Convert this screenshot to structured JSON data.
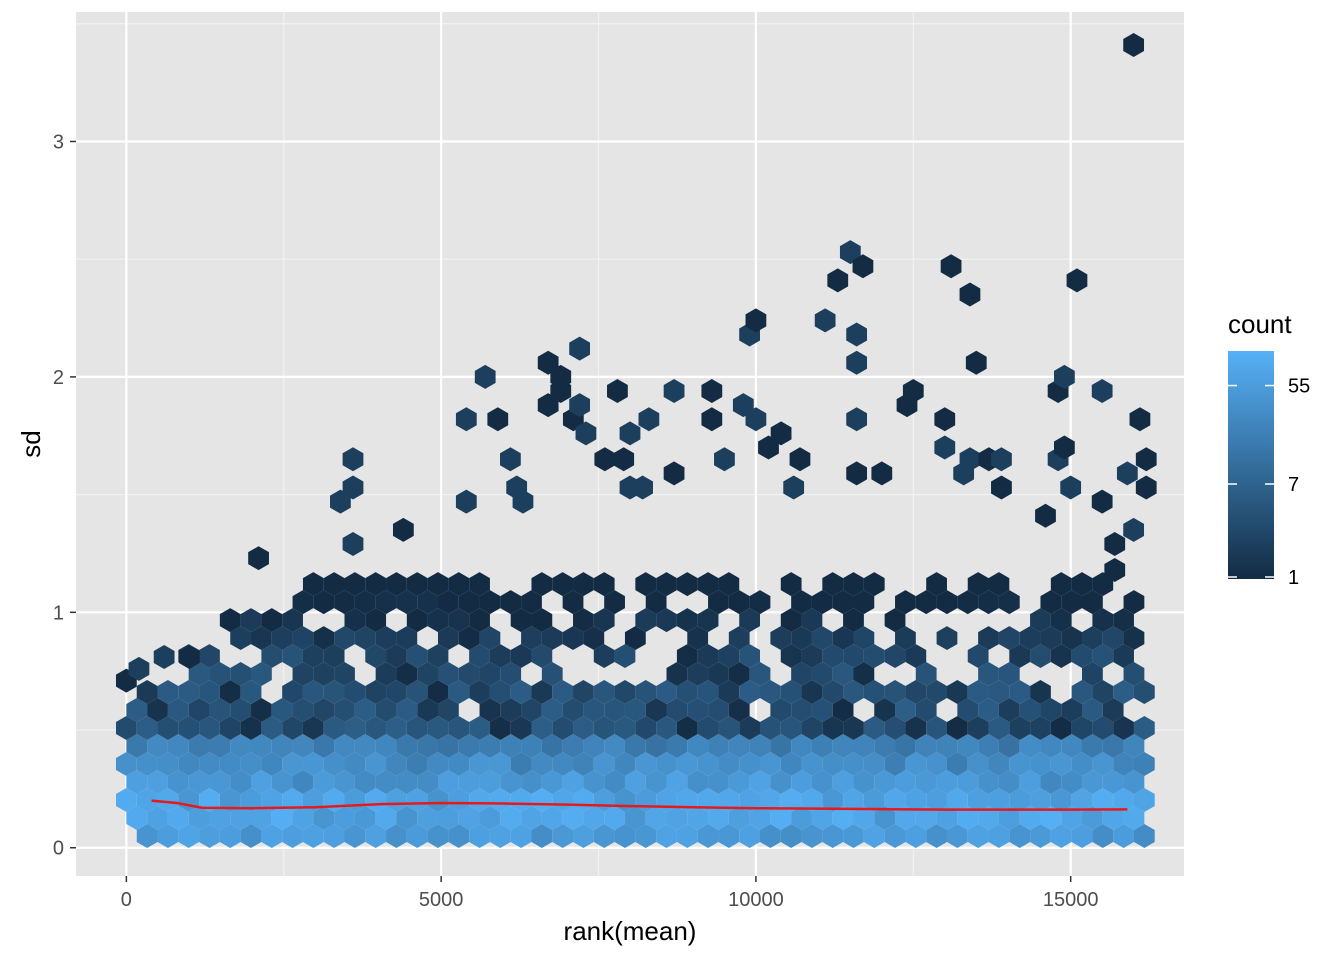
{
  "chart_data": {
    "type": "hexbin",
    "xlabel": "rank(mean)",
    "ylabel": "sd",
    "xlim": [
      -800,
      16800
    ],
    "ylim": [
      -0.12,
      3.55
    ],
    "x_ticks": [
      0,
      5000,
      10000,
      15000
    ],
    "x_tick_labels": [
      "0",
      "5000",
      "10000",
      "15000"
    ],
    "y_ticks": [
      0,
      1,
      2,
      3
    ],
    "y_tick_labels": [
      "0",
      "1",
      "2",
      "3"
    ],
    "grid": true,
    "legend": {
      "title": "count",
      "placement": "right",
      "breaks": [
        1,
        7,
        55
      ],
      "break_labels": [
        "1",
        "7",
        "55"
      ],
      "max": 110,
      "color_low": "#132b43",
      "color_high": "#56b1f7"
    },
    "colors": {
      "panel_background": "#e5e5e5",
      "gridline": "#ffffff",
      "trend_line": "#e41a1c"
    },
    "trend_line": {
      "x": [
        400,
        800,
        1200,
        2000,
        3000,
        4000,
        5000,
        6000,
        7000,
        8000,
        9000,
        10000,
        11000,
        12000,
        13000,
        14000,
        15000,
        15900
      ],
      "y": [
        0.2,
        0.19,
        0.17,
        0.168,
        0.172,
        0.185,
        0.19,
        0.188,
        0.183,
        0.177,
        0.172,
        0.168,
        0.166,
        0.164,
        0.162,
        0.162,
        0.162,
        0.163
      ]
    },
    "outlier_points": [
      {
        "x": 0,
        "y": 0.71
      },
      {
        "x": 200,
        "y": 0.76
      },
      {
        "x": 600,
        "y": 0.81
      },
      {
        "x": 1000,
        "y": 0.81
      },
      {
        "x": 2100,
        "y": 1.23
      },
      {
        "x": 3600,
        "y": 1.65
      },
      {
        "x": 3600,
        "y": 1.53
      },
      {
        "x": 3400,
        "y": 1.47
      },
      {
        "x": 3600,
        "y": 1.29
      },
      {
        "x": 4400,
        "y": 1.35
      },
      {
        "x": 5400,
        "y": 1.82
      },
      {
        "x": 5700,
        "y": 2.0
      },
      {
        "x": 5900,
        "y": 1.82
      },
      {
        "x": 6100,
        "y": 1.65
      },
      {
        "x": 6200,
        "y": 1.53
      },
      {
        "x": 6300,
        "y": 1.47
      },
      {
        "x": 5400,
        "y": 1.47
      },
      {
        "x": 6700,
        "y": 1.88
      },
      {
        "x": 6900,
        "y": 1.94
      },
      {
        "x": 7100,
        "y": 1.82
      },
      {
        "x": 7300,
        "y": 1.76
      },
      {
        "x": 6700,
        "y": 2.06
      },
      {
        "x": 6900,
        "y": 2.0
      },
      {
        "x": 7200,
        "y": 2.12
      },
      {
        "x": 7200,
        "y": 1.88
      },
      {
        "x": 7600,
        "y": 1.65
      },
      {
        "x": 7800,
        "y": 1.94
      },
      {
        "x": 7900,
        "y": 1.65
      },
      {
        "x": 8000,
        "y": 1.76
      },
      {
        "x": 8300,
        "y": 1.82
      },
      {
        "x": 8000,
        "y": 1.53
      },
      {
        "x": 8200,
        "y": 1.53
      },
      {
        "x": 8700,
        "y": 1.94
      },
      {
        "x": 8700,
        "y": 1.59
      },
      {
        "x": 9300,
        "y": 1.94
      },
      {
        "x": 9300,
        "y": 1.82
      },
      {
        "x": 9500,
        "y": 1.65
      },
      {
        "x": 9800,
        "y": 1.88
      },
      {
        "x": 10000,
        "y": 1.82
      },
      {
        "x": 9900,
        "y": 2.18
      },
      {
        "x": 10000,
        "y": 2.24
      },
      {
        "x": 10200,
        "y": 1.7
      },
      {
        "x": 10400,
        "y": 1.76
      },
      {
        "x": 10700,
        "y": 1.65
      },
      {
        "x": 10600,
        "y": 1.53
      },
      {
        "x": 11100,
        "y": 2.24
      },
      {
        "x": 11300,
        "y": 2.41
      },
      {
        "x": 11500,
        "y": 2.53
      },
      {
        "x": 11700,
        "y": 2.47
      },
      {
        "x": 11600,
        "y": 2.18
      },
      {
        "x": 11600,
        "y": 2.06
      },
      {
        "x": 11600,
        "y": 1.82
      },
      {
        "x": 11600,
        "y": 1.59
      },
      {
        "x": 12400,
        "y": 1.88
      },
      {
        "x": 12500,
        "y": 1.94
      },
      {
        "x": 12000,
        "y": 1.59
      },
      {
        "x": 13000,
        "y": 1.82
      },
      {
        "x": 13000,
        "y": 1.7
      },
      {
        "x": 13100,
        "y": 2.47
      },
      {
        "x": 13400,
        "y": 2.35
      },
      {
        "x": 13500,
        "y": 2.06
      },
      {
        "x": 13300,
        "y": 1.59
      },
      {
        "x": 13400,
        "y": 1.65
      },
      {
        "x": 13700,
        "y": 1.65
      },
      {
        "x": 13900,
        "y": 1.65
      },
      {
        "x": 13900,
        "y": 1.53
      },
      {
        "x": 14800,
        "y": 1.65
      },
      {
        "x": 14900,
        "y": 1.7
      },
      {
        "x": 14800,
        "y": 1.94
      },
      {
        "x": 14900,
        "y": 2.0
      },
      {
        "x": 15000,
        "y": 1.53
      },
      {
        "x": 15100,
        "y": 2.41
      },
      {
        "x": 15500,
        "y": 1.94
      },
      {
        "x": 15500,
        "y": 1.47
      },
      {
        "x": 15700,
        "y": 1.29
      },
      {
        "x": 15900,
        "y": 1.59
      },
      {
        "x": 16100,
        "y": 1.82
      },
      {
        "x": 16200,
        "y": 1.65
      },
      {
        "x": 16200,
        "y": 1.53
      },
      {
        "x": 16000,
        "y": 1.35
      },
      {
        "x": 16000,
        "y": 3.41
      },
      {
        "x": 14600,
        "y": 1.41
      },
      {
        "x": 15700,
        "y": 1.18
      }
    ]
  }
}
